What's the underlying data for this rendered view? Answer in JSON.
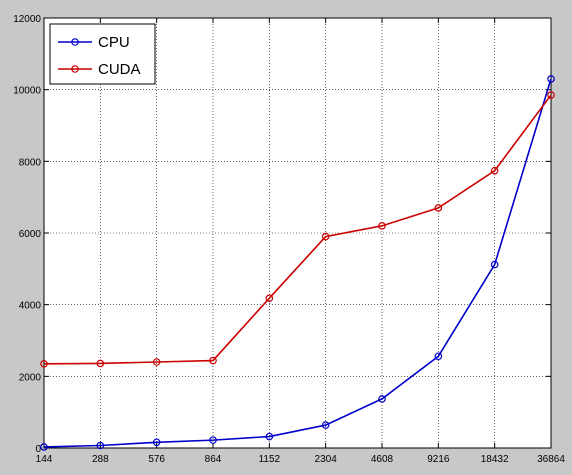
{
  "chart_data": {
    "type": "line",
    "title": "",
    "xlabel": "",
    "ylabel": "",
    "categories": [
      "144",
      "288",
      "576",
      "864",
      "1152",
      "2304",
      "4608",
      "9216",
      "18432",
      "36864"
    ],
    "ylim": [
      0,
      12000
    ],
    "yticks": [
      "0",
      "2000",
      "4000",
      "6000",
      "8000",
      "10000",
      "12000"
    ],
    "grid": "dotted",
    "legend_position": "top-left",
    "series": [
      {
        "name": "CPU",
        "color": "#0000cc",
        "marker": "circle",
        "values": [
          30,
          70,
          160,
          220,
          320,
          640,
          1370,
          2560,
          5120,
          10300
        ]
      },
      {
        "name": "CUDA",
        "color": "#cc0000",
        "marker": "circle",
        "values": [
          2350,
          2360,
          2400,
          2440,
          4180,
          5900,
          6200,
          6700,
          7740,
          9850
        ]
      }
    ]
  }
}
